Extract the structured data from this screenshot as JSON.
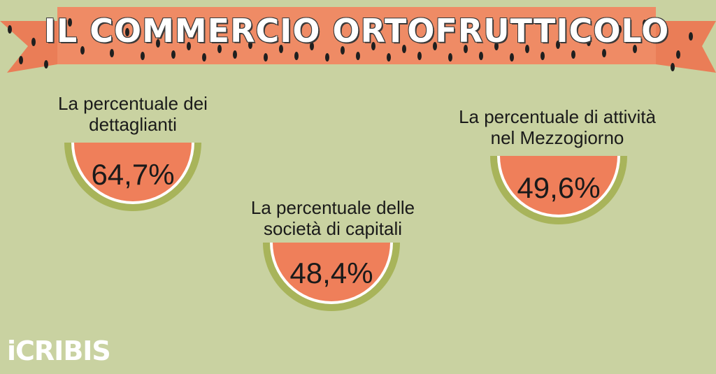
{
  "header": {
    "title": "IL COMMERCIO ORTOFRUTTICOLO"
  },
  "stats": [
    {
      "label_line1": "La percentuale dei",
      "label_line2": "dettaglianti",
      "value": "64,7%"
    },
    {
      "label_line1": "La percentuale delle",
      "label_line2": "società di capitali",
      "value": "48,4%"
    },
    {
      "label_line1": "La percentuale di attività",
      "label_line2": "nel  Mezzogiorno",
      "value": "49,6%"
    }
  ],
  "footer": {
    "brand": "iCRIBIS"
  },
  "colors": {
    "background": "#c9d2a1",
    "banner": "#ef8b65",
    "melon_flesh": "#ef7f5a",
    "melon_rind": "#a8b45a",
    "text": "#1a1a1a"
  }
}
